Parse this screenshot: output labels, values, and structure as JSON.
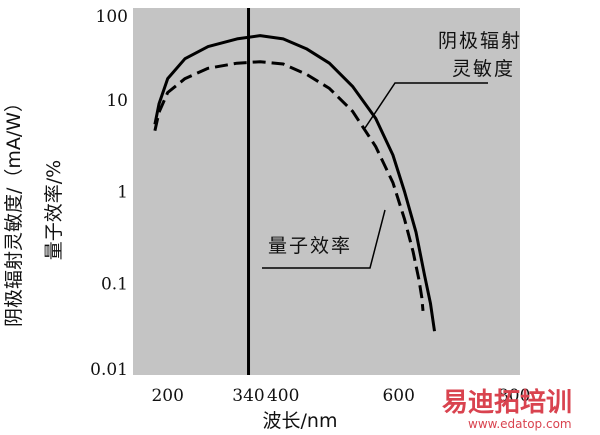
{
  "chart_data": {
    "type": "line",
    "xlabel": "波长/nm",
    "ylabel": "阴极辐射灵敏度/（mA/W）",
    "ylabel2": "量子效率/%",
    "x_ticks": [
      "200",
      "340",
      "400",
      "600",
      "800"
    ],
    "x_tick_values": [
      200,
      340,
      400,
      600,
      800
    ],
    "y_ticks": [
      "100",
      "10",
      "1",
      "0.1",
      "0.01"
    ],
    "y_tick_values": [
      100,
      10,
      1,
      0.1,
      0.01
    ],
    "xlim": [
      140,
      810
    ],
    "ylim": [
      0.01,
      100
    ],
    "y_scale": "log",
    "grid": false,
    "background": "#c4c4c4",
    "vline": {
      "x": 340
    },
    "series": [
      {
        "name": "阴极辐射灵敏度",
        "style": "solid",
        "color": "#000000",
        "x": [
          178,
          185,
          200,
          230,
          270,
          320,
          360,
          400,
          440,
          480,
          520,
          560,
          590,
          610,
          630,
          645,
          655,
          662
        ],
        "y": [
          5.4,
          9,
          17,
          28,
          38,
          46,
          50,
          46,
          36,
          25,
          14,
          6.3,
          2.5,
          1.0,
          0.36,
          0.12,
          0.06,
          0.03
        ]
      },
      {
        "name": "量子效率",
        "style": "dashed",
        "color": "#000000",
        "x": [
          178,
          185,
          200,
          230,
          270,
          320,
          360,
          400,
          440,
          480,
          520,
          560,
          590,
          610,
          625,
          635,
          640,
          642
        ],
        "y": [
          4.6,
          7.3,
          12,
          17,
          22,
          25,
          26,
          24.5,
          19,
          13.3,
          7.5,
          3.1,
          1.25,
          0.5,
          0.22,
          0.11,
          0.07,
          0.05
        ]
      }
    ],
    "annotations": [
      {
        "lines": [
          "阴极辐射",
          "灵敏度"
        ],
        "target": "阴极辐射灵敏度"
      },
      {
        "lines": [
          "量子效率"
        ],
        "target": "量子效率"
      }
    ]
  },
  "watermark": {
    "text": "易迪拓培训",
    "url": "www.edatop.com",
    "color": "#d9434f"
  }
}
